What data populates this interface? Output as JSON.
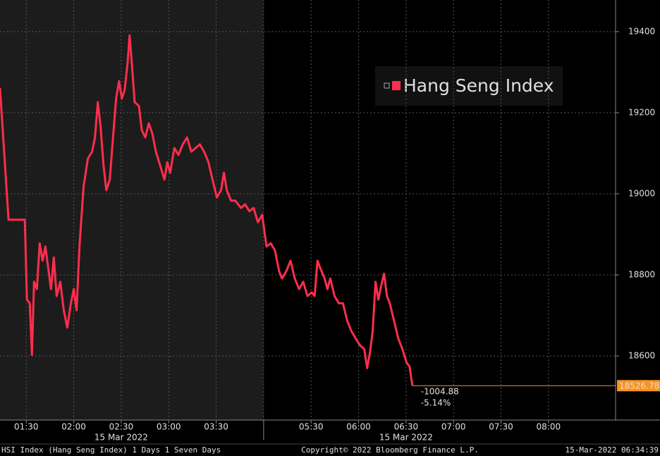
{
  "chart_data": {
    "type": "line",
    "series": [
      {
        "name": "Hang Seng Index",
        "color": "#ff2e4c",
        "x": [
          73.4,
          78.8,
          89.1,
          90.4,
          92.2,
          93.6,
          94.9,
          96.7,
          98.5,
          100.3,
          102.1,
          103.9,
          105.6,
          107.4,
          109.2,
          111.5,
          113.7,
          115.9,
          118.2,
          120,
          121.8,
          123.6,
          126.2,
          128.9,
          131.6,
          133.4,
          135.2,
          137,
          138.8,
          140.6,
          142.8,
          145,
          146.8,
          148.6,
          150.4,
          152.2,
          154,
          155.3,
          156.7,
          158.5,
          161.2,
          163,
          165.2,
          167.4,
          169.7,
          171.9,
          174.6,
          177.3,
          179.1,
          180.9,
          183.6,
          186.2,
          188.9,
          191.6,
          194.3,
          197,
          199.7,
          202.4,
          205.1,
          207.7,
          210.4,
          213.1,
          214.9,
          216.7,
          219.4,
          222.1,
          225.7,
          228.3,
          231,
          233.7,
          236.4,
          239.1,
          301.8,
          304.5,
          307.1,
          309.8,
          311.6,
          314.3,
          317,
          319.7,
          322.4,
          325,
          327.7,
          330.4,
          332.2,
          334,
          335.8,
          338.5,
          340.3,
          342.1,
          344.8,
          347.5,
          350.1,
          352.8,
          355.5,
          358.2,
          360.9,
          363.6,
          365.4,
          367.2,
          368.9,
          370.7,
          372.5,
          374.3,
          376.1,
          377.9,
          379.7,
          382.4,
          385.1,
          387.7,
          390.4,
          392.2,
          394
        ],
        "values": [
          19261,
          18936,
          18936,
          18739,
          18730,
          18603,
          18783,
          18765,
          18878,
          18835,
          18870,
          18817,
          18765,
          18843,
          18748,
          18783,
          18713,
          18670,
          18730,
          18765,
          18713,
          18870,
          19017,
          19087,
          19104,
          19139,
          19226,
          19165,
          19070,
          19009,
          19035,
          19148,
          19235,
          19278,
          19235,
          19256,
          19322,
          19391,
          19322,
          19226,
          19217,
          19157,
          19139,
          19174,
          19148,
          19104,
          19070,
          19035,
          19078,
          19052,
          19113,
          19096,
          19122,
          19139,
          19104,
          19113,
          19122,
          19104,
          19078,
          19035,
          18991,
          19009,
          19052,
          19009,
          18983,
          18983,
          18965,
          18974,
          18957,
          18965,
          18930,
          18948,
          18870,
          18878,
          18861,
          18809,
          18791,
          18809,
          18835,
          18791,
          18765,
          18783,
          18748,
          18757,
          18748,
          18835,
          18817,
          18791,
          18765,
          18791,
          18748,
          18730,
          18730,
          18687,
          18661,
          18643,
          18626,
          18617,
          18570,
          18609,
          18661,
          18783,
          18739,
          18774,
          18803,
          18748,
          18730,
          18687,
          18643,
          18617,
          18583,
          18574,
          18526.78
        ]
      }
    ],
    "xlim": [
      73.4,
      522.4
    ],
    "xbreak": [
      240,
      300
    ],
    "xticks": [
      {
        "value": 90,
        "label": "01:30"
      },
      {
        "value": 120,
        "label": "02:00"
      },
      {
        "value": 150,
        "label": "02:30"
      },
      {
        "value": 180,
        "label": "03:00"
      },
      {
        "value": 210,
        "label": "03:30"
      },
      {
        "value": 330,
        "label": "05:30"
      },
      {
        "value": 360,
        "label": "06:00"
      },
      {
        "value": 390,
        "label": "06:30"
      },
      {
        "value": 420,
        "label": "07:00"
      },
      {
        "value": 450,
        "label": "07:30"
      },
      {
        "value": 480,
        "label": "08:00"
      }
    ],
    "date_labels": [
      {
        "value": 150,
        "label": "15 Mar 2022"
      },
      {
        "value": 390,
        "label": "15 Mar 2022"
      }
    ],
    "ylim": [
      18442,
      19478
    ],
    "yticks": [
      18600,
      18800,
      19000,
      19200,
      19400
    ],
    "grid": true,
    "last_value": 18526.78,
    "last_color": "#f7931e",
    "annotations": [
      "-1004.88",
      "-5.14%"
    ],
    "footer": {
      "left": "HSI Index (Hang Seng Index) 1 Days 1 Seven Days",
      "center": "Copyright© 2022 Bloomberg Finance L.P.",
      "right": "15-Mar-2022 06:34:39"
    }
  }
}
